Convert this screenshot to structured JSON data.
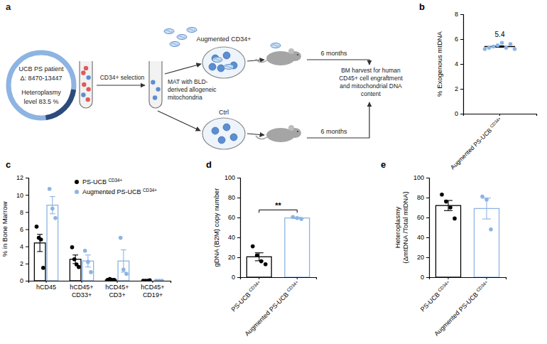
{
  "diagram": {
    "panel_label": "a",
    "patient": [
      "UCB PS patient",
      "Δ: 8470-13447",
      "Heteroplasmy",
      "level  83.5 %"
    ],
    "selection": "CD34+ selection",
    "augmented": "Augmented CD34+",
    "treatment": [
      "MAT with BLD-",
      "derived allogeneic",
      "mitochondria"
    ],
    "control": "Ctrl",
    "durations": [
      "6 months",
      "6 months"
    ],
    "readout": [
      "BM harvest for human",
      "CD45+ cell engraftment",
      "and mitochondrial DNA",
      "content"
    ]
  },
  "chart_data": [
    {
      "type": "dot",
      "panel_label": "b",
      "y_label": "% Exogenous mtDNA",
      "categories": [
        "Augmented PS-UCB CD34+"
      ],
      "ylim": [
        0,
        8
      ],
      "yticks": [
        0,
        2,
        4,
        6,
        8
      ],
      "data_labels": true,
      "series": [
        {
          "color": "#8db4e2",
          "values": [
            5.4
          ],
          "errors": [
            0.06
          ],
          "points": [
            [
              5.2,
              5.3,
              5.4,
              5.5,
              5.7,
              5.3,
              5.6,
              5.2
            ]
          ]
        }
      ]
    },
    {
      "type": "bar",
      "panel_label": "c",
      "y_label": "% in Bone Marrow",
      "categories": [
        "hCD45",
        "hCD45+\nCD33+",
        "hCD45+\nCD3+",
        "hCD45+\nCD19+"
      ],
      "ylim": [
        0,
        12
      ],
      "yticks": [
        0,
        2,
        4,
        6,
        8,
        10,
        12
      ],
      "legend": "upper left",
      "series": [
        {
          "name": "PS-UCB CD34+",
          "color": "#000000",
          "values": [
            4.4,
            2.5,
            0.1,
            0.0
          ],
          "errors": [
            1.0,
            0.5,
            0.03,
            0.01
          ],
          "points": [
            [
              6.3,
              5.0,
              4.8,
              1.5
            ],
            [
              3.9,
              2.5,
              1.9,
              1.6
            ],
            [
              0.1,
              0.2,
              0.1,
              0.1
            ],
            [
              0,
              0,
              0,
              0.05
            ]
          ]
        },
        {
          "name": "Augmented PS-UCB CD34+",
          "color": "#8db4e2",
          "values": [
            8.8,
            2.3,
            2.3,
            0.0
          ],
          "errors": [
            1.0,
            0.7,
            1.3,
            0.0
          ],
          "points": [
            [
              10.7,
              8.4,
              7.3
            ],
            [
              3.5,
              2.2,
              1.0
            ],
            [
              5.0,
              1.3,
              0.8
            ],
            [
              0,
              0,
              0
            ]
          ]
        }
      ]
    },
    {
      "type": "bar",
      "panel_label": "d",
      "y_label": "gDNA (B2M) copy number",
      "categories": [
        "PS-UCB CD34+",
        "Augmented PS-UCB CD34+"
      ],
      "ylim": [
        0,
        100
      ],
      "yticks": [
        0,
        20,
        40,
        60,
        80,
        100
      ],
      "annotation": "**",
      "series": [
        {
          "colors": [
            "#000000",
            "#8db4e2"
          ],
          "values": [
            20.5,
            59.5
          ],
          "errors": [
            4.0,
            0.6
          ],
          "points": [
            [
              31,
              22,
              16,
              13
            ],
            [
              60.5,
              59.5,
              58.5
            ]
          ]
        }
      ]
    },
    {
      "type": "bar",
      "panel_label": "e",
      "y_label": "Heteroplasmy\n(ΔmtDNA /Total mtDNA)",
      "categories": [
        "PS-UCB CD34+",
        "Augmented PS-UCB CD34+"
      ],
      "ylim": [
        0,
        100
      ],
      "yticks": [
        0,
        20,
        40,
        60,
        80,
        100
      ],
      "series": [
        {
          "colors": [
            "#000000",
            "#8db4e2"
          ],
          "values": [
            72,
            69
          ],
          "errors": [
            5.1,
            10.5
          ],
          "points": [
            [
              83,
              76,
              70,
              59
            ],
            [
              81,
              78,
              48
            ]
          ]
        }
      ]
    }
  ]
}
